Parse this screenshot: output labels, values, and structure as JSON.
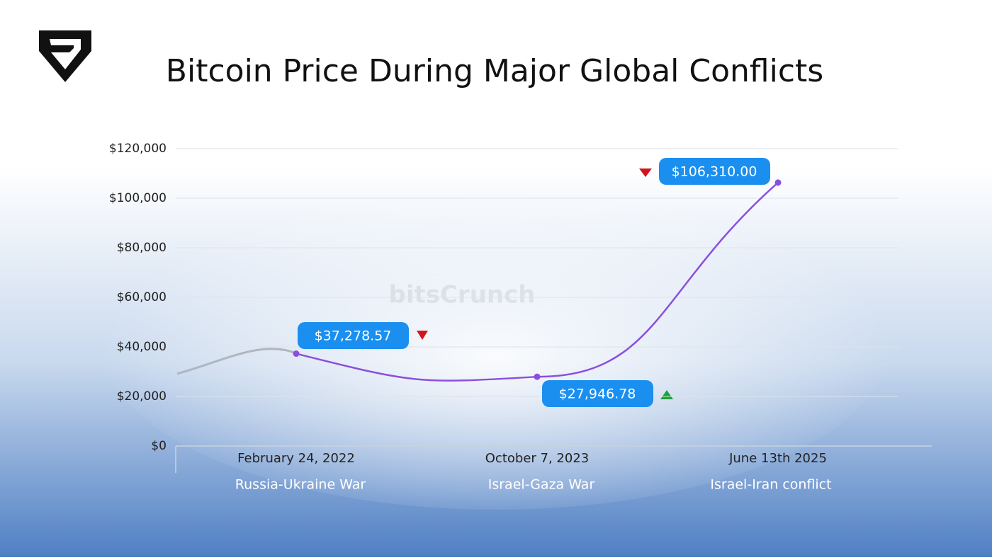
{
  "chart_data": {
    "type": "line",
    "title": "Bitcoin Price During Major Global Conflicts",
    "watermark": "bitsCrunch",
    "categories": [
      "February 24, 2022",
      "October 7, 2023",
      "June 13th 2025"
    ],
    "events": [
      "Russia-Ukraine War",
      "Israel-Gaza War",
      "Israel-Iran conflict"
    ],
    "series": [
      {
        "name": "Bitcoin price",
        "color": "#8b4fe0",
        "values": [
          37278.57,
          27946.78,
          106310.0
        ],
        "value_labels": [
          "$37,278.57",
          "$27,946.78",
          "$106,310.00"
        ]
      }
    ],
    "ylim": [
      0,
      120000
    ],
    "yticks": [
      {
        "value": 0,
        "label": "$0"
      },
      {
        "value": 20000,
        "label": "$20,000"
      },
      {
        "value": 40000,
        "label": "$40,000"
      },
      {
        "value": 60000,
        "label": "$60,000"
      },
      {
        "value": 80000,
        "label": "$80,000"
      },
      {
        "value": 100000,
        "label": "$100,000"
      },
      {
        "value": 120000,
        "label": "$120,000"
      }
    ],
    "grid": true
  }
}
